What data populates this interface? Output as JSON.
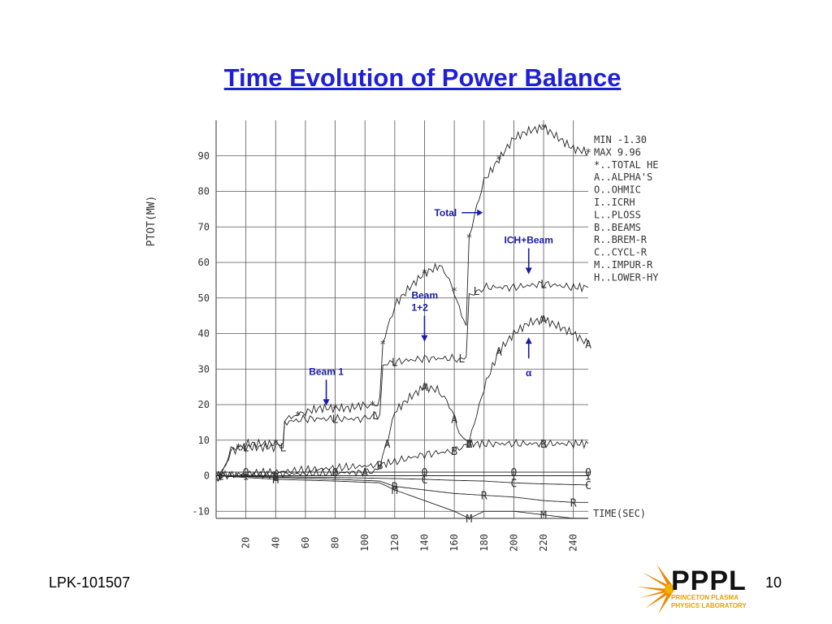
{
  "slide": {
    "title": "Time Evolution of Power Balance",
    "footer_left": "LPK-101507",
    "page_number": "10",
    "logo": {
      "text": "PPPL",
      "sub_line1": "PRINCETON PLASMA",
      "sub_line2": "PHYSICS LABORATORY"
    }
  },
  "chart_data": {
    "type": "line",
    "ylabel": "PTOT(MW)",
    "xlabel": "TIME(SEC)",
    "xlim": [
      0,
      250
    ],
    "ylim": [
      -12,
      100
    ],
    "grid": true,
    "x_ticks": [
      "20",
      "40",
      "60",
      "80",
      "100",
      "120",
      "140",
      "160",
      "180",
      "200",
      "220",
      "240"
    ],
    "y_ticks": [
      "-10",
      "0",
      "10",
      "20",
      "30",
      "40",
      "50",
      "60",
      "70",
      "80",
      "90"
    ],
    "legend_box": [
      "MIN   -1.30",
      "MAX    9.96",
      "*..TOTAL HE",
      "A..ALPHA'S",
      "O..OHMIC",
      "I..ICRH",
      "L..PLOSS",
      "B..BEAMS",
      "R..BREM-R",
      "C..CYCL-R",
      "M..IMPUR-R",
      "H..LOWER-HY"
    ],
    "legend_placement": "right",
    "series": [
      {
        "name": "TOTAL HE",
        "marker": "*",
        "x": [
          0,
          3,
          5,
          10,
          15,
          20,
          30,
          40,
          45,
          46,
          55,
          60,
          70,
          80,
          90,
          100,
          105,
          107,
          110,
          112,
          120,
          130,
          140,
          150,
          155,
          160,
          165,
          168,
          170,
          175,
          180,
          190,
          200,
          210,
          220,
          230,
          240,
          250
        ],
        "y": [
          -1,
          0,
          2,
          7,
          8,
          9,
          9,
          9,
          9,
          16,
          17,
          18,
          19,
          19,
          19,
          20,
          20,
          20,
          21,
          37,
          48,
          53,
          57,
          59,
          56,
          52,
          45,
          42,
          67,
          76,
          83,
          89,
          95,
          97,
          98,
          95,
          92,
          91
        ]
      },
      {
        "name": "PLOSS",
        "marker": "L",
        "x": [
          0,
          3,
          5,
          10,
          20,
          30,
          40,
          45,
          46,
          60,
          80,
          100,
          105,
          107,
          110,
          112,
          120,
          140,
          160,
          165,
          168,
          170,
          175,
          180,
          200,
          220,
          240,
          250
        ],
        "y": [
          -1,
          0,
          2,
          7,
          8,
          8,
          8,
          8,
          15,
          16,
          16,
          16,
          17,
          17,
          17,
          31,
          32,
          33,
          33,
          33,
          33,
          50,
          52,
          53,
          53,
          54,
          53,
          53
        ]
      },
      {
        "name": "ALPHA'S",
        "marker": "A",
        "x": [
          0,
          100,
          105,
          110,
          115,
          120,
          130,
          140,
          150,
          155,
          160,
          165,
          168,
          170,
          175,
          180,
          190,
          200,
          210,
          220,
          230,
          240,
          250
        ],
        "y": [
          0,
          1,
          1,
          3,
          9,
          18,
          22,
          25,
          24,
          21,
          16,
          11,
          10,
          9,
          17,
          25,
          35,
          40,
          43,
          44,
          42,
          40,
          37
        ]
      },
      {
        "name": "BEAMS",
        "marker": "B",
        "x": [
          0,
          110,
          120,
          140,
          160,
          165,
          168,
          170,
          180,
          200,
          220,
          240,
          250
        ],
        "y": [
          0,
          3,
          4,
          6,
          7,
          8,
          9,
          9,
          9,
          9,
          9,
          9,
          9
        ]
      },
      {
        "name": "OHMIC",
        "marker": "O",
        "x": [
          0,
          20,
          40,
          60,
          80,
          100,
          120,
          140,
          160,
          180,
          200,
          220,
          240,
          250
        ],
        "y": [
          1,
          1,
          1,
          1,
          1,
          1,
          1,
          1,
          1,
          1,
          1,
          1,
          1,
          1
        ]
      },
      {
        "name": "ICRH",
        "marker": "I",
        "x": [
          0,
          20,
          40,
          60,
          80,
          100,
          120,
          140,
          160,
          180,
          200,
          220,
          240,
          250
        ],
        "y": [
          0,
          0,
          0,
          0,
          0,
          0,
          0,
          0,
          0,
          0,
          0,
          0,
          0,
          0
        ]
      },
      {
        "name": "CYCL-R",
        "marker": "C",
        "x": [
          0,
          40,
          80,
          120,
          140,
          160,
          180,
          200,
          220,
          240,
          250
        ],
        "y": [
          0,
          -0.3,
          -0.5,
          -0.8,
          -1,
          -1.3,
          -1.5,
          -2,
          -2.3,
          -2.5,
          -2.6
        ]
      },
      {
        "name": "BREM-R",
        "marker": "R",
        "x": [
          0,
          40,
          80,
          110,
          120,
          140,
          160,
          180,
          200,
          220,
          240,
          250
        ],
        "y": [
          0,
          -0.5,
          -1,
          -1.5,
          -3,
          -4,
          -5,
          -5.5,
          -6,
          -7,
          -7.5,
          -7.5
        ]
      },
      {
        "name": "IMPUR-R",
        "marker": "M",
        "x": [
          0,
          40,
          80,
          110,
          120,
          140,
          160,
          170,
          180,
          200,
          220,
          240,
          250
        ],
        "y": [
          0,
          -1,
          -1.5,
          -2,
          -4,
          -7,
          -10,
          -12,
          -10,
          -10,
          -11,
          -12,
          -12
        ]
      }
    ],
    "annotations": [
      {
        "text": "Total",
        "x": 165,
        "y": 74,
        "arrow": "right"
      },
      {
        "text": "ICH+Beam",
        "x": 210,
        "y": 64,
        "arrow": "down"
      },
      {
        "text": "Beam\n1+2",
        "x": 140,
        "y": 45,
        "arrow": "down"
      },
      {
        "text": "α",
        "x": 210,
        "y": 33,
        "arrow": "up"
      },
      {
        "text": "Beam 1",
        "x": 74,
        "y": 27,
        "arrow": "down"
      }
    ],
    "colors": {
      "title": "#1f1fd6",
      "annotation": "#1a1aa8",
      "plot": "#222222",
      "grid": "#555555"
    }
  }
}
